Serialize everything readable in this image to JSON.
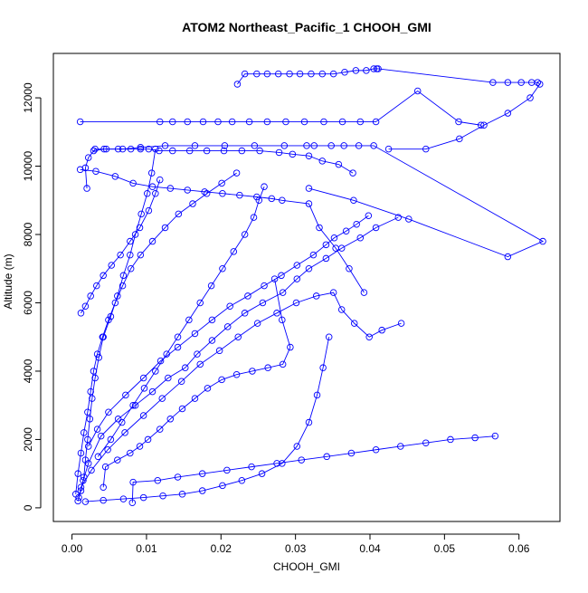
{
  "chart_data": {
    "type": "line",
    "title": "ATOM2 Northeast_Pacific_1 CHOOH_GMI",
    "xlabel": "CHOOH_GMI",
    "ylabel": "Altitude (m)",
    "xlim": [
      -0.0025,
      0.0655
    ],
    "ylim": [
      -400,
      13300
    ],
    "xticks": [
      0.0,
      0.01,
      0.02,
      0.03,
      0.04,
      0.05,
      0.06
    ],
    "xtick_labels": [
      "0.00",
      "0.01",
      "0.02",
      "0.03",
      "0.04",
      "0.05",
      "0.06"
    ],
    "yticks": [
      0,
      2000,
      4000,
      6000,
      8000,
      10000,
      12000
    ],
    "ytick_labels": [
      "0",
      "2000",
      "4000",
      "6000",
      "8000",
      "10000",
      "12000"
    ],
    "grid": false,
    "legend": "none",
    "color": "#0000ff",
    "marker": "open-circle",
    "series": [
      {
        "x": [
          0.0008,
          0.0012,
          0.0016,
          0.0018,
          0.0021,
          0.0024,
          0.0027,
          0.0031,
          0.0036,
          0.0042,
          0.0052,
          0.0061,
          0.0069,
          0.0078,
          0.0085,
          0.0093,
          0.0101,
          0.0107,
          0.0112
        ],
        "y": [
          200,
          500,
          900,
          1400,
          2000,
          2600,
          3200,
          3800,
          4400,
          5000,
          5600,
          6200,
          6800,
          7400,
          8000,
          8600,
          9200,
          9800,
          10500
        ]
      },
      {
        "x": [
          0.0011,
          0.0118,
          0.0135,
          0.0155,
          0.0176,
          0.0196,
          0.0215,
          0.0238,
          0.0262,
          0.0287,
          0.0312,
          0.0338,
          0.0363,
          0.0387,
          0.0408,
          0.0464,
          0.0519,
          0.0549
        ],
        "y": [
          11300,
          11300,
          11300,
          11300,
          11300,
          11300,
          11300,
          11300,
          11300,
          11300,
          11300,
          11300,
          11300,
          11300,
          11300,
          12200,
          11300,
          11200
        ]
      },
      {
        "x": [
          0.0222,
          0.0232,
          0.0248,
          0.0262,
          0.0277,
          0.0292,
          0.0306,
          0.0321,
          0.0336,
          0.0351,
          0.0366,
          0.0381,
          0.0395,
          0.0405,
          0.0409,
          0.0411,
          0.0565,
          0.0585,
          0.0603,
          0.0617,
          0.0625,
          0.0628,
          0.0615,
          0.0585,
          0.0553,
          0.052,
          0.0475,
          0.0425
        ],
        "y": [
          12400,
          12700,
          12700,
          12700,
          12700,
          12700,
          12700,
          12700,
          12700,
          12700,
          12750,
          12800,
          12800,
          12850,
          12850,
          12850,
          12450,
          12450,
          12450,
          12450,
          12450,
          12400,
          12000,
          11550,
          11200,
          10800,
          10500,
          10500
        ]
      },
      {
        "x": [
          0.0029,
          0.0043,
          0.0068,
          0.0092,
          0.0125,
          0.0165,
          0.0205,
          0.0245,
          0.0285,
          0.0315,
          0.0325,
          0.0348,
          0.0365,
          0.0385,
          0.0405,
          0.0632,
          0.0585,
          0.0452,
          0.0378,
          0.0318
        ],
        "y": [
          10450,
          10500,
          10500,
          10550,
          10600,
          10600,
          10600,
          10600,
          10600,
          10600,
          10600,
          10600,
          10600,
          10600,
          10600,
          7800,
          7350,
          8450,
          9000,
          9350
        ]
      },
      {
        "x": [
          0.002,
          0.0018,
          0.0022,
          0.0031,
          0.0046,
          0.0062,
          0.0079,
          0.0092,
          0.0103,
          0.0117,
          0.0135,
          0.0158,
          0.0181,
          0.0204,
          0.0228,
          0.0252,
          0.0278,
          0.0296,
          0.0318,
          0.0336,
          0.0358,
          0.0377
        ],
        "y": [
          9350,
          9950,
          10250,
          10500,
          10500,
          10500,
          10500,
          10500,
          10500,
          10450,
          10450,
          10450,
          10450,
          10450,
          10450,
          10450,
          10400,
          10350,
          10300,
          10150,
          10050,
          9800
        ]
      },
      {
        "x": [
          0.0009,
          0.0015,
          0.0022,
          0.0039,
          0.0062,
          0.0085,
          0.0108,
          0.0129,
          0.0152,
          0.0168,
          0.0188,
          0.0209,
          0.0232,
          0.0256,
          0.0283,
          0.0302,
          0.0318,
          0.0341,
          0.0362,
          0.0387,
          0.0408,
          0.0438
        ],
        "y": [
          300,
          800,
          1300,
          2100,
          2600,
          3000,
          3400,
          3800,
          4100,
          4500,
          4900,
          5300,
          5700,
          6000,
          6300,
          6700,
          7000,
          7300,
          7600,
          7900,
          8200,
          8500
        ]
      },
      {
        "x": [
          0.0011,
          0.0032,
          0.0058,
          0.0082,
          0.0108,
          0.0132,
          0.0155,
          0.0178,
          0.0202,
          0.0225,
          0.0248,
          0.0268,
          0.0282,
          0.0318,
          0.0332,
          0.0354,
          0.0372,
          0.0392
        ],
        "y": [
          9900,
          9850,
          9700,
          9500,
          9400,
          9350,
          9300,
          9250,
          9200,
          9150,
          9100,
          9050,
          9000,
          8900,
          8200,
          7600,
          7000,
          6300
        ]
      },
      {
        "x": [
          0.0012,
          0.0026,
          0.0048,
          0.0071,
          0.0096,
          0.0121,
          0.0147,
          0.0172,
          0.0198,
          0.0223,
          0.0249,
          0.0275,
          0.0301,
          0.0328,
          0.0351,
          0.0362,
          0.0379,
          0.0399,
          0.0416,
          0.0442
        ],
        "y": [
          600,
          1100,
          1700,
          2200,
          2700,
          3200,
          3700,
          4200,
          4600,
          5000,
          5400,
          5700,
          6000,
          6200,
          6300,
          5800,
          5400,
          5000,
          5200,
          5400
        ]
      },
      {
        "x": [
          0.0022,
          0.0034,
          0.0049,
          0.0072,
          0.0096,
          0.0119,
          0.0142,
          0.0165,
          0.0188,
          0.0212,
          0.0236,
          0.0258,
          0.0281,
          0.0302,
          0.0324,
          0.0341,
          0.0352,
          0.0368,
          0.0382,
          0.0398
        ],
        "y": [
          1800,
          2300,
          2800,
          3300,
          3800,
          4300,
          4700,
          5100,
          5500,
          5900,
          6200,
          6500,
          6800,
          7100,
          7400,
          7700,
          7900,
          8100,
          8300,
          8550
        ]
      },
      {
        "x": [
          0.0005,
          0.0008,
          0.0012,
          0.0016,
          0.0021,
          0.0025,
          0.0029,
          0.0034,
          0.0041,
          0.0049,
          0.0058,
          0.0068,
          0.0079,
          0.0092,
          0.0108,
          0.0125,
          0.0143,
          0.0162,
          0.0181,
          0.0201,
          0.0221
        ],
        "y": [
          400,
          1000,
          1600,
          2200,
          2800,
          3400,
          4000,
          4500,
          5000,
          5500,
          6000,
          6500,
          7000,
          7400,
          7800,
          8200,
          8600,
          8900,
          9200,
          9500,
          9800
        ]
      },
      {
        "x": [
          0.0081,
          0.0082,
          0.0115,
          0.0142,
          0.0175,
          0.0208,
          0.0241,
          0.0275,
          0.0308,
          0.0342,
          0.0375,
          0.0408,
          0.0441,
          0.0475,
          0.0508,
          0.0541,
          0.0568
        ],
        "y": [
          150,
          750,
          800,
          900,
          1000,
          1100,
          1200,
          1300,
          1400,
          1500,
          1600,
          1700,
          1800,
          1900,
          2000,
          2050,
          2100
        ]
      },
      {
        "x": [
          0.0042,
          0.0045,
          0.0061,
          0.0078,
          0.0091,
          0.0102,
          0.0118,
          0.0132,
          0.0148,
          0.0165,
          0.0182,
          0.0201,
          0.0221,
          0.0242,
          0.0263,
          0.0283,
          0.0293,
          0.0282,
          0.0272
        ],
        "y": [
          600,
          1200,
          1400,
          1600,
          1800,
          2000,
          2300,
          2600,
          2900,
          3200,
          3500,
          3750,
          3900,
          4000,
          4100,
          4200,
          4700,
          5500,
          6700
        ]
      },
      {
        "x": [
          0.0035,
          0.0052,
          0.0067,
          0.0082,
          0.0097,
          0.0112,
          0.0127,
          0.0142,
          0.0157,
          0.0172,
          0.0187,
          0.0202,
          0.0217,
          0.0232,
          0.0244,
          0.0251,
          0.0258
        ],
        "y": [
          1500,
          2000,
          2500,
          3000,
          3500,
          4000,
          4500,
          5000,
          5500,
          6000,
          6500,
          7000,
          7500,
          8000,
          8500,
          9000,
          9400
        ]
      },
      {
        "x": [
          0.0012,
          0.0018,
          0.0025,
          0.0033,
          0.0042,
          0.0053,
          0.0065,
          0.0078,
          0.0091,
          0.0103,
          0.0112,
          0.0118
        ],
        "y": [
          5700,
          5900,
          6200,
          6500,
          6800,
          7100,
          7400,
          7800,
          8200,
          8700,
          9200,
          9600
        ]
      },
      {
        "x": [
          0.0018,
          0.0042,
          0.0069,
          0.0096,
          0.0122,
          0.0148,
          0.0175,
          0.0202,
          0.0228,
          0.0255,
          0.0282,
          0.0302,
          0.0318,
          0.0329,
          0.0337,
          0.0345
        ],
        "y": [
          180,
          220,
          260,
          300,
          350,
          400,
          500,
          650,
          800,
          1000,
          1300,
          1800,
          2500,
          3300,
          4100,
          5000
        ]
      }
    ]
  }
}
